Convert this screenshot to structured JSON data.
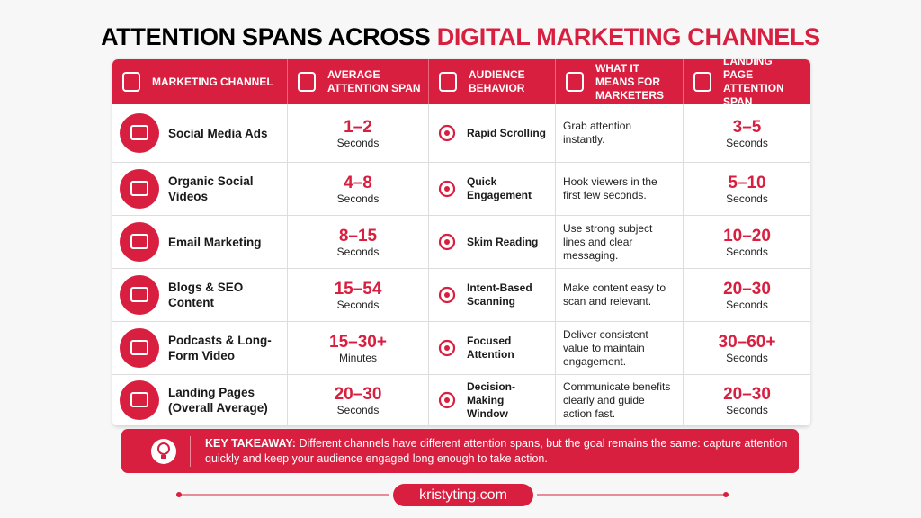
{
  "title": {
    "main": "ATTENTION SPANS ACROSS",
    "highlight": "DIGITAL MARKETING CHANNELS"
  },
  "table": {
    "headers": [
      "MARKETING CHANNEL",
      "AVERAGE ATTENTION SPAN",
      "AUDIENCE BEHAVIOR",
      "WHAT IT MEANS FOR MARKETERS",
      "LANDING PAGE ATTENTION SPAN"
    ],
    "rows": [
      {
        "channel": "Social Media Ads",
        "span": "1–2",
        "span_unit": "Seconds",
        "behavior": "Rapid Scrolling",
        "meaning": "Grab attention instantly.",
        "landing": "3–5",
        "landing_unit": "Seconds"
      },
      {
        "channel": "Organic Social Videos",
        "span": "4–8",
        "span_unit": "Seconds",
        "behavior": "Quick Engagement",
        "meaning": "Hook viewers in the first few seconds.",
        "landing": "5–10",
        "landing_unit": "Seconds"
      },
      {
        "channel": "Email Marketing",
        "span": "8–15",
        "span_unit": "Seconds",
        "behavior": "Skim Reading",
        "meaning": "Use strong subject lines and clear messaging.",
        "landing": "10–20",
        "landing_unit": "Seconds"
      },
      {
        "channel": "Blogs & SEO Content",
        "span": "15–54",
        "span_unit": "Seconds",
        "behavior": "Intent-Based Scanning",
        "meaning": "Make content easy to scan and relevant.",
        "landing": "20–30",
        "landing_unit": "Seconds"
      },
      {
        "channel": "Podcasts & Long-Form Video",
        "span": "15–30+",
        "span_unit": "Minutes",
        "behavior": "Focused Attention",
        "meaning": "Deliver consistent value to maintain engagement.",
        "landing": "30–60+",
        "landing_unit": "Seconds"
      },
      {
        "channel": "Landing Pages (Overall Average)",
        "span": "20–30",
        "span_unit": "Seconds",
        "behavior": "Decision-Making Window",
        "meaning": "Communicate benefits clearly and guide action fast.",
        "landing": "20–30",
        "landing_unit": "Seconds"
      }
    ]
  },
  "takeaway": {
    "label": "KEY TAKEAWAY:",
    "text": "Different channels have different attention spans, but the goal remains the same: capture attention quickly and keep your audience engaged long enough to take action."
  },
  "footer": {
    "url": "kristyting.com"
  }
}
